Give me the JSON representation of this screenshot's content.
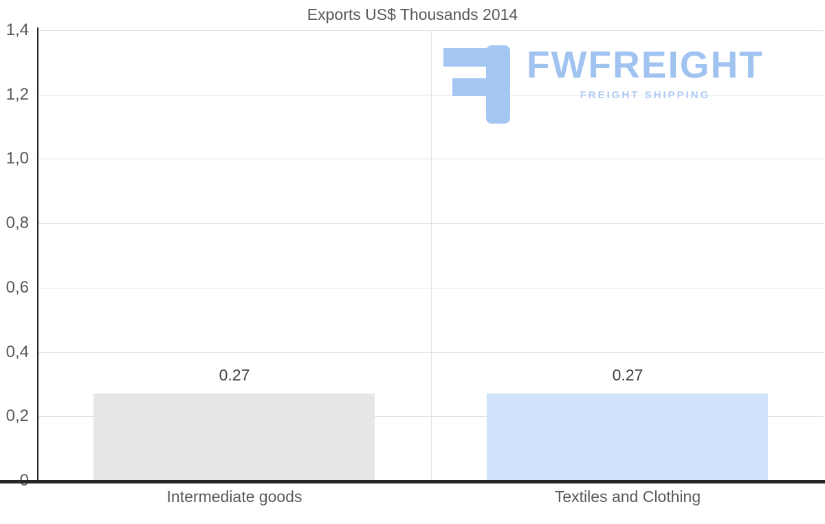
{
  "chart_data": {
    "type": "bar",
    "title": "Exports US$ Thousands 2014",
    "categories": [
      "Intermediate goods",
      "Textiles and Clothing"
    ],
    "values": [
      0.27,
      0.27
    ],
    "value_labels": [
      "0.27",
      "0.27"
    ],
    "bar_colors": [
      "#e6e6e6",
      "#cfe2fa"
    ],
    "xlabel": "",
    "ylabel": "",
    "ylim": [
      0,
      1.4
    ],
    "ytick_step": 0.2,
    "ytick_labels": [
      "0",
      "0,2",
      "0,4",
      "0,6",
      "0,8",
      "1,0",
      "1,2",
      "1,4"
    ],
    "grid": true,
    "legend": "none",
    "decimal_separator_axis": "comma",
    "decimal_separator_labels": "dot"
  },
  "watermark": {
    "name": "FWFREIGHT",
    "subtitle": "FREIGHT SHIPPING",
    "brand_color": "#a1c3f0"
  }
}
